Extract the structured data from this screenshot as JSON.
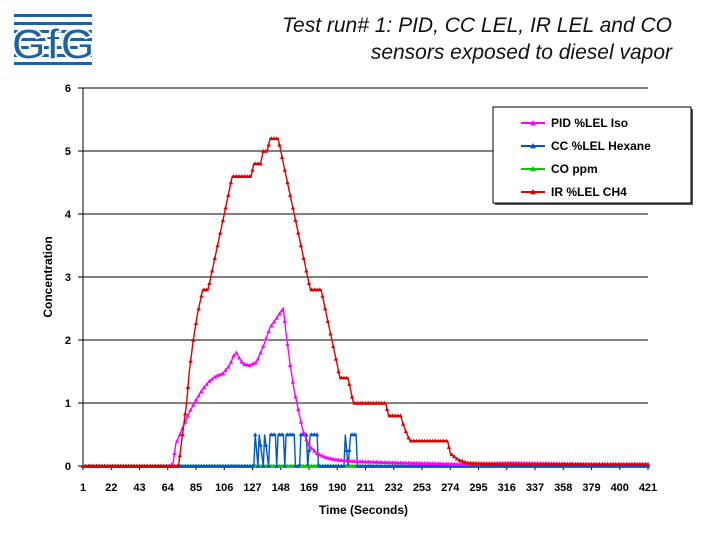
{
  "title_lines": [
    "Test run# 1: PID, CC LEL, IR LEL and CO",
    "sensors exposed to diesel vapor"
  ],
  "logo": {
    "text": "GfG"
  },
  "chart_data": {
    "type": "line",
    "title": "Test run# 1: PID, CC LEL, IR LEL and CO sensors exposed to diesel vapor",
    "xlabel": "Time (Seconds)",
    "ylabel": "Concentration",
    "ylim": [
      0,
      6
    ],
    "yticks": [
      0,
      1,
      2,
      3,
      4,
      5,
      6
    ],
    "xlim": [
      1,
      421
    ],
    "xticks": [
      1,
      22,
      43,
      64,
      85,
      106,
      127,
      148,
      169,
      190,
      211,
      232,
      253,
      274,
      295,
      316,
      337,
      358,
      379,
      400,
      421
    ],
    "grid": "horizontal",
    "legend_position": "top-right",
    "series": [
      {
        "name": "PID %LEL Iso",
        "color": "#ff00ff",
        "marker": "triangle",
        "points": [
          [
            1,
            0
          ],
          [
            66,
            0
          ],
          [
            68,
            0.05
          ],
          [
            70,
            0.35
          ],
          [
            75,
            0.6
          ],
          [
            80,
            0.85
          ],
          [
            85,
            1.05
          ],
          [
            90,
            1.22
          ],
          [
            95,
            1.35
          ],
          [
            100,
            1.43
          ],
          [
            105,
            1.47
          ],
          [
            110,
            1.6
          ],
          [
            113,
            1.75
          ],
          [
            115,
            1.8
          ],
          [
            117,
            1.72
          ],
          [
            120,
            1.62
          ],
          [
            125,
            1.6
          ],
          [
            130,
            1.65
          ],
          [
            135,
            1.9
          ],
          [
            140,
            2.2
          ],
          [
            145,
            2.35
          ],
          [
            148,
            2.45
          ],
          [
            150,
            2.5
          ],
          [
            152,
            2.1
          ],
          [
            155,
            1.6
          ],
          [
            158,
            1.2
          ],
          [
            161,
            0.9
          ],
          [
            164,
            0.6
          ],
          [
            167,
            0.42
          ],
          [
            170,
            0.3
          ],
          [
            175,
            0.2
          ],
          [
            180,
            0.15
          ],
          [
            185,
            0.12
          ],
          [
            190,
            0.1
          ],
          [
            200,
            0.08
          ],
          [
            210,
            0.07
          ],
          [
            225,
            0.06
          ],
          [
            245,
            0.05
          ],
          [
            265,
            0.04
          ],
          [
            280,
            0.03
          ],
          [
            300,
            0.04
          ],
          [
            320,
            0.05
          ],
          [
            350,
            0.04
          ],
          [
            380,
            0.03
          ],
          [
            421,
            0.03
          ]
        ]
      },
      {
        "name": "CC %LEL Hexane",
        "color": "#0055cc",
        "marker": "triangle",
        "points": [
          [
            1,
            0
          ],
          [
            128,
            0
          ],
          [
            129,
            0.5
          ],
          [
            131,
            0
          ],
          [
            132,
            0.5
          ],
          [
            135,
            0
          ],
          [
            136,
            0.5
          ],
          [
            139,
            0
          ],
          [
            140,
            0.5
          ],
          [
            144,
            0.5
          ],
          [
            145,
            0
          ],
          [
            146,
            0.5
          ],
          [
            150,
            0.5
          ],
          [
            151,
            0
          ],
          [
            152,
            0.5
          ],
          [
            158,
            0.5
          ],
          [
            159,
            0
          ],
          [
            162,
            0
          ],
          [
            163,
            0.5
          ],
          [
            167,
            0.5
          ],
          [
            168,
            0
          ],
          [
            170,
            0.5
          ],
          [
            175,
            0.5
          ],
          [
            176,
            0
          ],
          [
            195,
            0
          ],
          [
            196,
            0.5
          ],
          [
            198,
            0
          ],
          [
            200,
            0.5
          ],
          [
            204,
            0.5
          ],
          [
            205,
            0
          ],
          [
            421,
            0
          ]
        ]
      },
      {
        "name": "CO ppm",
        "color": "#00cc00",
        "marker": "triangle",
        "points": [
          [
            1,
            0
          ],
          [
            421,
            0
          ]
        ]
      },
      {
        "name": "IR %LEL CH4",
        "color": "#dd0000",
        "marker": "triangle",
        "points": [
          [
            1,
            0
          ],
          [
            70,
            0
          ],
          [
            72,
            0
          ],
          [
            75,
            0.5
          ],
          [
            78,
            1
          ],
          [
            80,
            1.5
          ],
          [
            83,
            2
          ],
          [
            86,
            2.4
          ],
          [
            88,
            2.6
          ],
          [
            90,
            2.8
          ],
          [
            94,
            2.8
          ],
          [
            96,
            3
          ],
          [
            98,
            3.2
          ],
          [
            100,
            3.4
          ],
          [
            102,
            3.6
          ],
          [
            104,
            3.8
          ],
          [
            106,
            4
          ],
          [
            108,
            4.2
          ],
          [
            110,
            4.4
          ],
          [
            112,
            4.6
          ],
          [
            126,
            4.6
          ],
          [
            128,
            4.8
          ],
          [
            133,
            4.8
          ],
          [
            135,
            5
          ],
          [
            138,
            5
          ],
          [
            140,
            5.2
          ],
          [
            146,
            5.2
          ],
          [
            148,
            5
          ],
          [
            150,
            4.8
          ],
          [
            152,
            4.6
          ],
          [
            154,
            4.4
          ],
          [
            156,
            4.2
          ],
          [
            158,
            4
          ],
          [
            160,
            3.8
          ],
          [
            162,
            3.6
          ],
          [
            164,
            3.4
          ],
          [
            166,
            3.2
          ],
          [
            168,
            3
          ],
          [
            170,
            2.8
          ],
          [
            178,
            2.8
          ],
          [
            180,
            2.6
          ],
          [
            182,
            2.4
          ],
          [
            184,
            2.2
          ],
          [
            186,
            2
          ],
          [
            188,
            1.8
          ],
          [
            190,
            1.6
          ],
          [
            192,
            1.4
          ],
          [
            198,
            1.4
          ],
          [
            200,
            1.2
          ],
          [
            202,
            1
          ],
          [
            226,
            1
          ],
          [
            228,
            0.8
          ],
          [
            237,
            0.8
          ],
          [
            240,
            0.6
          ],
          [
            244,
            0.4
          ],
          [
            272,
            0.4
          ],
          [
            274,
            0.2
          ],
          [
            280,
            0.1
          ],
          [
            287,
            0.05
          ],
          [
            300,
            0.04
          ],
          [
            330,
            0.03
          ],
          [
            421,
            0.03
          ]
        ]
      }
    ]
  }
}
